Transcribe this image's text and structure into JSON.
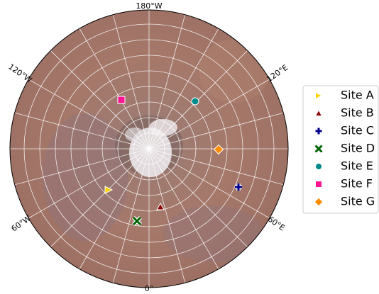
{
  "map": {
    "longitude_labels": {
      "top": "180°W",
      "upper_left": "120°W",
      "upper_right": "120°E",
      "lower_left": "60°W",
      "lower_right": "60°E",
      "bottom": "0°"
    },
    "sites": [
      {
        "name": "Site A",
        "color": "#ffd400",
        "marker": "triangle-right"
      },
      {
        "name": "Site B",
        "color": "#8b0000",
        "marker": "triangle-up"
      },
      {
        "name": "Site C",
        "color": "#00008b",
        "marker": "plus"
      },
      {
        "name": "Site D",
        "color": "#006400",
        "marker": "x"
      },
      {
        "name": "Site E",
        "color": "#008b8b",
        "marker": "circle"
      },
      {
        "name": "Site F",
        "color": "#ff1493",
        "marker": "square"
      },
      {
        "name": "Site G",
        "color": "#ff8c00",
        "marker": "diamond"
      }
    ]
  }
}
